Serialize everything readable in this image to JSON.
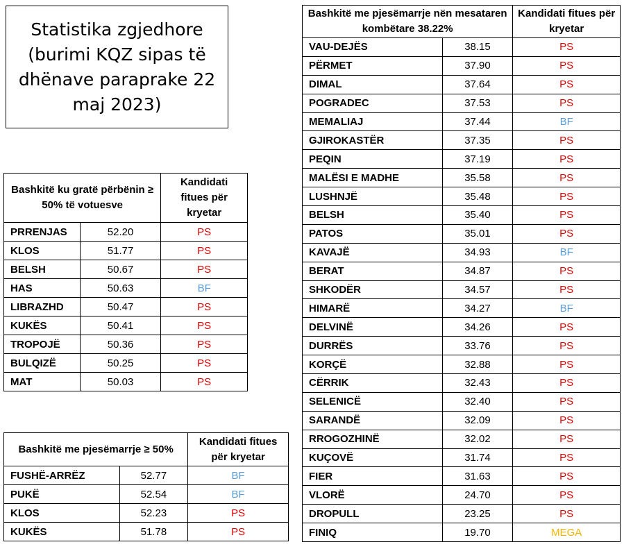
{
  "title": "Statistika zgjedhore (burimi KQZ sipas të dhënave paraprake 22 maj 2023)",
  "colors": {
    "PS": "#e00000",
    "BF": "#5b9bd5",
    "MEGA": "#f0b400"
  },
  "women_table": {
    "header_municipality": "Bashkitë ku gratë përbënin ≥ 50% të votuesve",
    "header_winner": "Kandidati fitues për kryetar",
    "rows": [
      {
        "name": "PRRENJAS",
        "value": "52.20",
        "party": "PS"
      },
      {
        "name": "KLOS",
        "value": "51.77",
        "party": "PS"
      },
      {
        "name": "BELSH",
        "value": "50.67",
        "party": "PS"
      },
      {
        "name": "HAS",
        "value": "50.63",
        "party": "BF"
      },
      {
        "name": "LIBRAZHD",
        "value": "50.47",
        "party": "PS"
      },
      {
        "name": "KUKËS",
        "value": "50.41",
        "party": "PS"
      },
      {
        "name": "TROPOJË",
        "value": "50.36",
        "party": "PS"
      },
      {
        "name": "BULQIZË",
        "value": "50.25",
        "party": "PS"
      },
      {
        "name": "MAT",
        "value": "50.03",
        "party": "PS"
      }
    ]
  },
  "turnout_high_table": {
    "header_municipality": "Bashkitë me pjesëmarrje ≥ 50%",
    "header_winner": "Kandidati fitues për kryetar",
    "rows": [
      {
        "name": "FUSHË-ARRËZ",
        "value": "52.77",
        "party": "BF"
      },
      {
        "name": "PUKË",
        "value": "52.54",
        "party": "BF"
      },
      {
        "name": "KLOS",
        "value": "52.23",
        "party": "PS"
      },
      {
        "name": "KUKËS",
        "value": "51.78",
        "party": "PS"
      }
    ]
  },
  "turnout_low_table": {
    "header_municipality": "Bashkitë me pjesëmarrje nën mesataren kombëtare 38.22%",
    "header_winner": "Kandidati fitues për kryetar",
    "rows": [
      {
        "name": "VAU-DEJËS",
        "value": "38.15",
        "party": "PS"
      },
      {
        "name": "PËRMET",
        "value": "37.90",
        "party": "PS"
      },
      {
        "name": "DIMAL",
        "value": "37.64",
        "party": "PS"
      },
      {
        "name": "POGRADEC",
        "value": "37.53",
        "party": "PS"
      },
      {
        "name": "MEMALIAJ",
        "value": "37.44",
        "party": "BF"
      },
      {
        "name": "GJIROKASTËR",
        "value": "37.35",
        "party": "PS"
      },
      {
        "name": "PEQIN",
        "value": "37.19",
        "party": "PS"
      },
      {
        "name": "MALËSI E MADHE",
        "value": "35.58",
        "party": "PS"
      },
      {
        "name": "LUSHNJË",
        "value": "35.48",
        "party": "PS"
      },
      {
        "name": "BELSH",
        "value": "35.40",
        "party": "PS"
      },
      {
        "name": "PATOS",
        "value": "35.01",
        "party": "PS"
      },
      {
        "name": "KAVAJË",
        "value": "34.93",
        "party": "BF"
      },
      {
        "name": "BERAT",
        "value": "34.87",
        "party": "PS"
      },
      {
        "name": "SHKODËR",
        "value": "34.57",
        "party": "PS"
      },
      {
        "name": "HIMARË",
        "value": "34.27",
        "party": "BF"
      },
      {
        "name": "DELVINË",
        "value": "34.26",
        "party": "PS"
      },
      {
        "name": "DURRËS",
        "value": "33.76",
        "party": "PS"
      },
      {
        "name": "KORÇË",
        "value": "32.88",
        "party": "PS"
      },
      {
        "name": "CËRRIK",
        "value": "32.43",
        "party": "PS"
      },
      {
        "name": "SELENICË",
        "value": "32.40",
        "party": "PS"
      },
      {
        "name": "SARANDË",
        "value": "32.09",
        "party": "PS"
      },
      {
        "name": "RROGOZHINË",
        "value": "32.02",
        "party": "PS"
      },
      {
        "name": "KUÇOVË",
        "value": "31.74",
        "party": "PS"
      },
      {
        "name": "FIER",
        "value": "31.63",
        "party": "PS"
      },
      {
        "name": "VLORË",
        "value": "24.70",
        "party": "PS"
      },
      {
        "name": "DROPULL",
        "value": "23.25",
        "party": "PS"
      },
      {
        "name": "FINIQ",
        "value": "19.70",
        "party": "MEGA"
      }
    ]
  }
}
